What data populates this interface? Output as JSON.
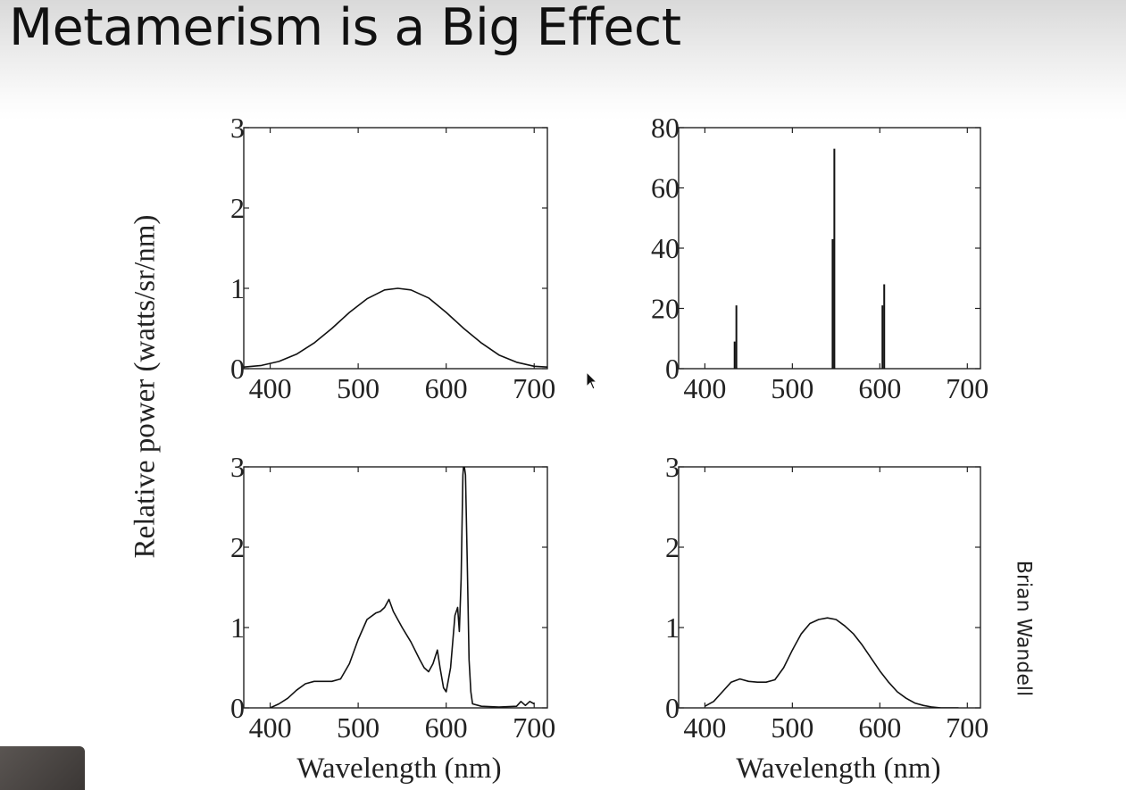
{
  "slide": {
    "title": "Metamerism is a Big Effect",
    "ylabel": "Relative power (watts/sr/nm)",
    "credit": "Brian Wandell"
  },
  "colors": {
    "line": "#111111",
    "header_gradient_top": "#d9d9d9"
  },
  "chart_data": [
    {
      "type": "line",
      "xlabel": "",
      "ylabel": "",
      "xlim": [
        370,
        715
      ],
      "ylim": [
        0,
        3
      ],
      "xticks": [
        400,
        500,
        600,
        700
      ],
      "yticks": [
        0,
        1,
        2,
        3
      ],
      "series": [
        {
          "x": [
            370,
            390,
            410,
            430,
            450,
            470,
            490,
            510,
            530,
            545,
            560,
            580,
            600,
            620,
            640,
            660,
            680,
            700,
            715
          ],
          "values": [
            0.02,
            0.04,
            0.09,
            0.18,
            0.32,
            0.5,
            0.7,
            0.87,
            0.98,
            1.0,
            0.98,
            0.88,
            0.7,
            0.5,
            0.32,
            0.17,
            0.08,
            0.03,
            0.02
          ]
        }
      ]
    },
    {
      "type": "line",
      "xlabel": "",
      "ylabel": "",
      "xlim": [
        370,
        715
      ],
      "ylim": [
        0,
        80
      ],
      "xticks": [
        400,
        500,
        600,
        700
      ],
      "yticks": [
        0,
        20,
        40,
        60,
        80
      ],
      "series": [
        {
          "x": [
            434,
            436,
            546,
            548,
            603,
            605
          ],
          "values": [
            9,
            21,
            43,
            73,
            21,
            28
          ]
        }
      ]
    },
    {
      "type": "line",
      "xlabel": "Wavelength (nm)",
      "ylabel": "",
      "xlim": [
        370,
        715
      ],
      "ylim": [
        0,
        3
      ],
      "xticks": [
        400,
        500,
        600,
        700
      ],
      "yticks": [
        0,
        1,
        2,
        3
      ],
      "series": [
        {
          "x": [
            400,
            410,
            420,
            430,
            440,
            450,
            460,
            470,
            480,
            490,
            500,
            510,
            520,
            525,
            530,
            535,
            540,
            550,
            560,
            570,
            575,
            580,
            585,
            590,
            593,
            597,
            600,
            605,
            610,
            613,
            615,
            617,
            619,
            620,
            622,
            624,
            626,
            628,
            630,
            640,
            660,
            680,
            685,
            690,
            695,
            700
          ],
          "values": [
            0.0,
            0.05,
            0.12,
            0.22,
            0.3,
            0.33,
            0.33,
            0.33,
            0.36,
            0.55,
            0.85,
            1.1,
            1.18,
            1.2,
            1.25,
            1.35,
            1.2,
            1.0,
            0.82,
            0.6,
            0.5,
            0.45,
            0.55,
            0.72,
            0.5,
            0.25,
            0.2,
            0.5,
            1.15,
            1.25,
            0.95,
            1.6,
            2.9,
            3.05,
            2.9,
            1.8,
            0.6,
            0.2,
            0.05,
            0.02,
            0.01,
            0.02,
            0.08,
            0.03,
            0.08,
            0.05
          ]
        }
      ]
    },
    {
      "type": "line",
      "xlabel": "Wavelength (nm)",
      "ylabel": "",
      "xlim": [
        370,
        715
      ],
      "ylim": [
        0,
        3
      ],
      "xticks": [
        400,
        500,
        600,
        700
      ],
      "yticks": [
        0,
        1,
        2,
        3
      ],
      "series": [
        {
          "x": [
            400,
            410,
            420,
            430,
            440,
            450,
            460,
            470,
            480,
            490,
            500,
            510,
            520,
            530,
            540,
            550,
            560,
            570,
            580,
            590,
            600,
            610,
            620,
            630,
            640,
            650,
            660,
            670,
            680,
            690
          ],
          "values": [
            0.02,
            0.08,
            0.2,
            0.32,
            0.36,
            0.33,
            0.32,
            0.32,
            0.35,
            0.5,
            0.72,
            0.92,
            1.05,
            1.1,
            1.12,
            1.1,
            1.02,
            0.92,
            0.78,
            0.62,
            0.46,
            0.32,
            0.2,
            0.12,
            0.06,
            0.03,
            0.01,
            0.0,
            0.0,
            0.0
          ]
        }
      ]
    }
  ]
}
